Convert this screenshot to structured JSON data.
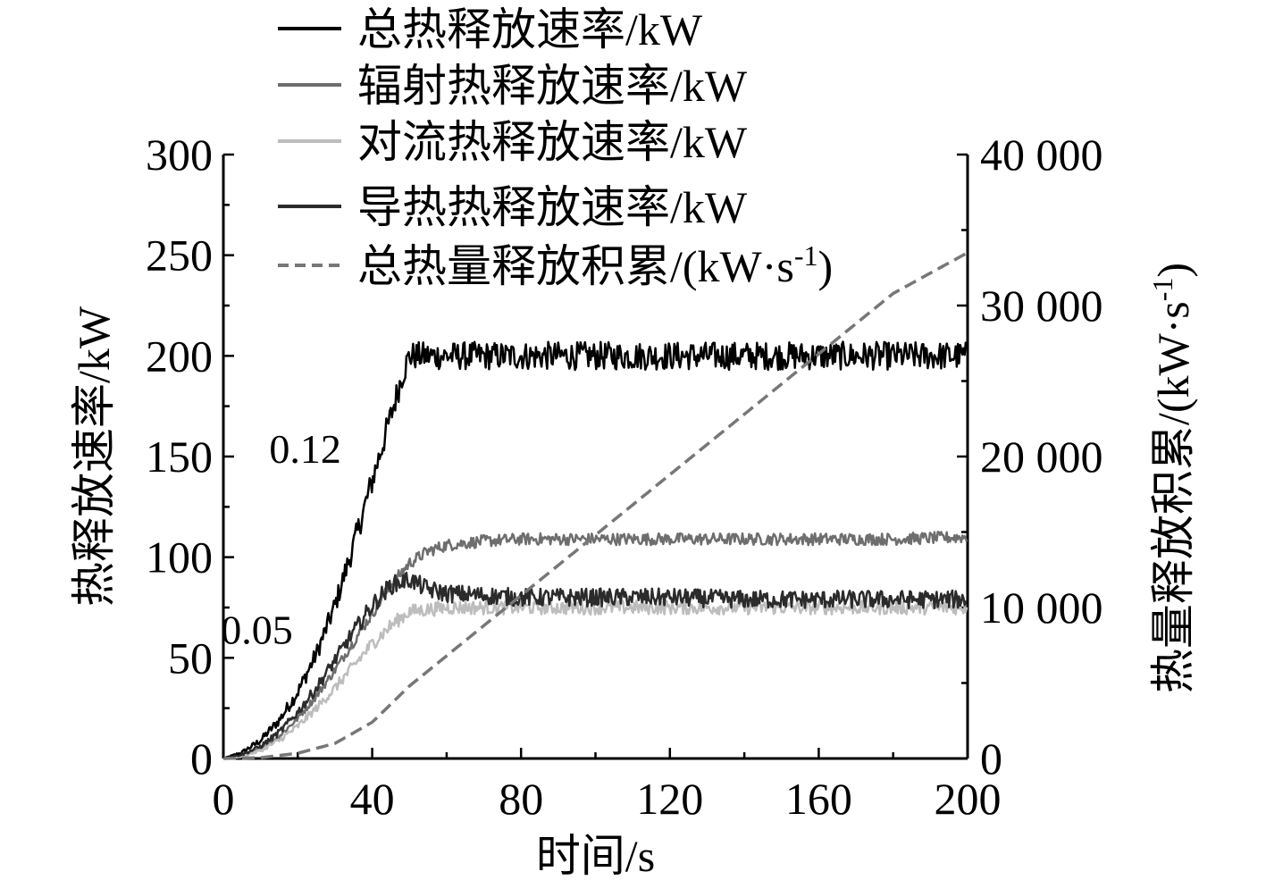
{
  "chart_data": {
    "type": "line",
    "xlabel": "时间/s",
    "ylabel_left": "热释放速率/kW",
    "ylabel_right": "热量释放积累/(kW·s",
    "ylabel_right_sup": "-1",
    "ylabel_right_close": ")",
    "xlim": [
      0,
      200
    ],
    "ylim_left": [
      0,
      300
    ],
    "ylim_right": [
      0,
      40000
    ],
    "x_ticks": [
      0,
      40,
      80,
      120,
      160,
      200
    ],
    "x_tick_labels": [
      "0",
      "40",
      "80",
      "120",
      "160",
      "200"
    ],
    "y_left_ticks": [
      0,
      50,
      100,
      150,
      200,
      250,
      300
    ],
    "y_left_tick_labels": [
      "0",
      "50",
      "100",
      "150",
      "200",
      "250",
      "300"
    ],
    "y_right_ticks": [
      0,
      10000,
      20000,
      30000,
      40000
    ],
    "y_right_tick_labels": [
      "0",
      "10 000",
      "20 000",
      "30 000",
      "40 000"
    ],
    "legend_position": "top",
    "annotations": [
      {
        "text": "0.12",
        "x": 22,
        "y": 147
      },
      {
        "text": "0.05",
        "x": 9,
        "y": 57
      }
    ],
    "series": [
      {
        "name": "总热释放速率/kW",
        "axis": "left",
        "color": "#000000",
        "style": "solid",
        "x": [
          0,
          5,
          10,
          15,
          20,
          25,
          30,
          35,
          40,
          45,
          48,
          50,
          60,
          80,
          100,
          120,
          140,
          160,
          180,
          200
        ],
        "y": [
          0,
          3,
          9,
          19,
          33,
          52,
          76,
          106,
          138,
          170,
          190,
          200,
          200,
          200,
          200,
          200,
          200,
          200,
          200,
          200
        ]
      },
      {
        "name": "辐射热释放速率/kW",
        "axis": "left",
        "color": "#6e6e6e",
        "style": "solid",
        "x": [
          0,
          5,
          10,
          15,
          20,
          25,
          30,
          35,
          40,
          45,
          50,
          55,
          60,
          70,
          80,
          100,
          120,
          140,
          160,
          180,
          200
        ],
        "y": [
          0,
          1,
          5,
          11,
          20,
          31,
          44,
          58,
          72,
          86,
          97,
          103,
          106,
          108,
          109,
          109,
          109,
          109,
          109,
          109,
          110
        ]
      },
      {
        "name": "对流热释放速率/kW",
        "axis": "left",
        "color": "#bdbdbd",
        "style": "solid",
        "x": [
          0,
          5,
          10,
          15,
          20,
          25,
          30,
          35,
          40,
          45,
          50,
          55,
          60,
          80,
          100,
          120,
          140,
          160,
          180,
          200
        ],
        "y": [
          0,
          1,
          4,
          9,
          16,
          25,
          35,
          46,
          57,
          66,
          73,
          74,
          75,
          75,
          75,
          75,
          75,
          75,
          75,
          75
        ]
      },
      {
        "name": "导热热释放速率/kW",
        "axis": "left",
        "color": "#2b2b2b",
        "style": "solid",
        "x": [
          0,
          5,
          10,
          15,
          20,
          25,
          30,
          35,
          40,
          45,
          50,
          55,
          60,
          70,
          80,
          100,
          120,
          140,
          160,
          180,
          200
        ],
        "y": [
          0,
          2,
          6,
          13,
          23,
          35,
          49,
          63,
          76,
          86,
          89,
          84,
          82,
          81,
          80,
          80,
          80,
          79,
          79,
          79,
          79
        ]
      },
      {
        "name": "总热量释放积累/(kW·s",
        "name_sup": "-1",
        "name_close": ")",
        "axis": "right",
        "color": "#777777",
        "style": "dashed",
        "x": [
          0,
          10,
          20,
          30,
          40,
          50,
          60,
          80,
          100,
          120,
          140,
          160,
          180,
          200
        ],
        "y": [
          0,
          50,
          350,
          1000,
          2400,
          4800,
          6800,
          10800,
          14800,
          18800,
          22800,
          26800,
          30800,
          33500
        ]
      }
    ]
  }
}
